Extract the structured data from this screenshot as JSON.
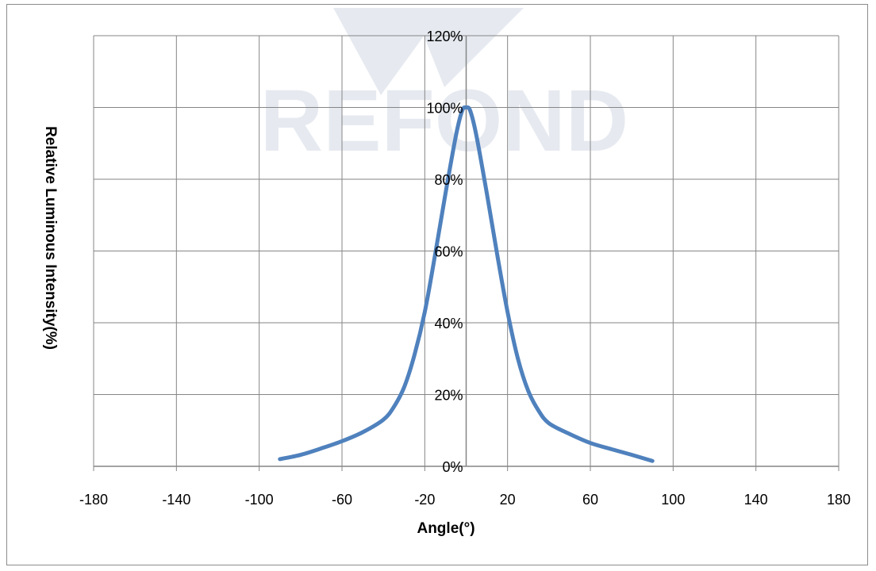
{
  "chart_data": {
    "type": "line",
    "title": "",
    "xlabel": "Angle(°)",
    "ylabel": "Relative Luminous Intensity(%)",
    "xlim": [
      -180,
      180
    ],
    "ylim": [
      0,
      120
    ],
    "x_ticks": [
      -180,
      -140,
      -100,
      -60,
      -20,
      20,
      60,
      100,
      140,
      180
    ],
    "x_tick_labels": [
      "-180",
      "-140",
      "-100",
      "-60",
      "-20",
      "20",
      "60",
      "100",
      "140",
      "180"
    ],
    "y_ticks": [
      0,
      20,
      40,
      60,
      80,
      100,
      120
    ],
    "y_tick_labels": [
      "0%",
      "20%",
      "40%",
      "60%",
      "80%",
      "100%",
      "120%"
    ],
    "grid": true,
    "watermark": "REFOND",
    "series": [
      {
        "color": "#4f81bd",
        "x": [
          -90,
          -80,
          -70,
          -60,
          -50,
          -40,
          -35,
          -30,
          -25,
          -20,
          -15,
          -10,
          -5,
          -2,
          0,
          2,
          5,
          10,
          15,
          20,
          25,
          30,
          35,
          40,
          50,
          60,
          70,
          80,
          90
        ],
        "y": [
          2,
          3.2,
          5,
          7,
          9.5,
          13,
          16.5,
          22,
          31,
          43,
          59,
          76,
          92,
          99,
          100,
          99,
          92,
          76,
          59,
          43,
          30,
          21,
          15.5,
          12,
          9,
          6.5,
          4.8,
          3.2,
          1.5
        ]
      }
    ]
  }
}
